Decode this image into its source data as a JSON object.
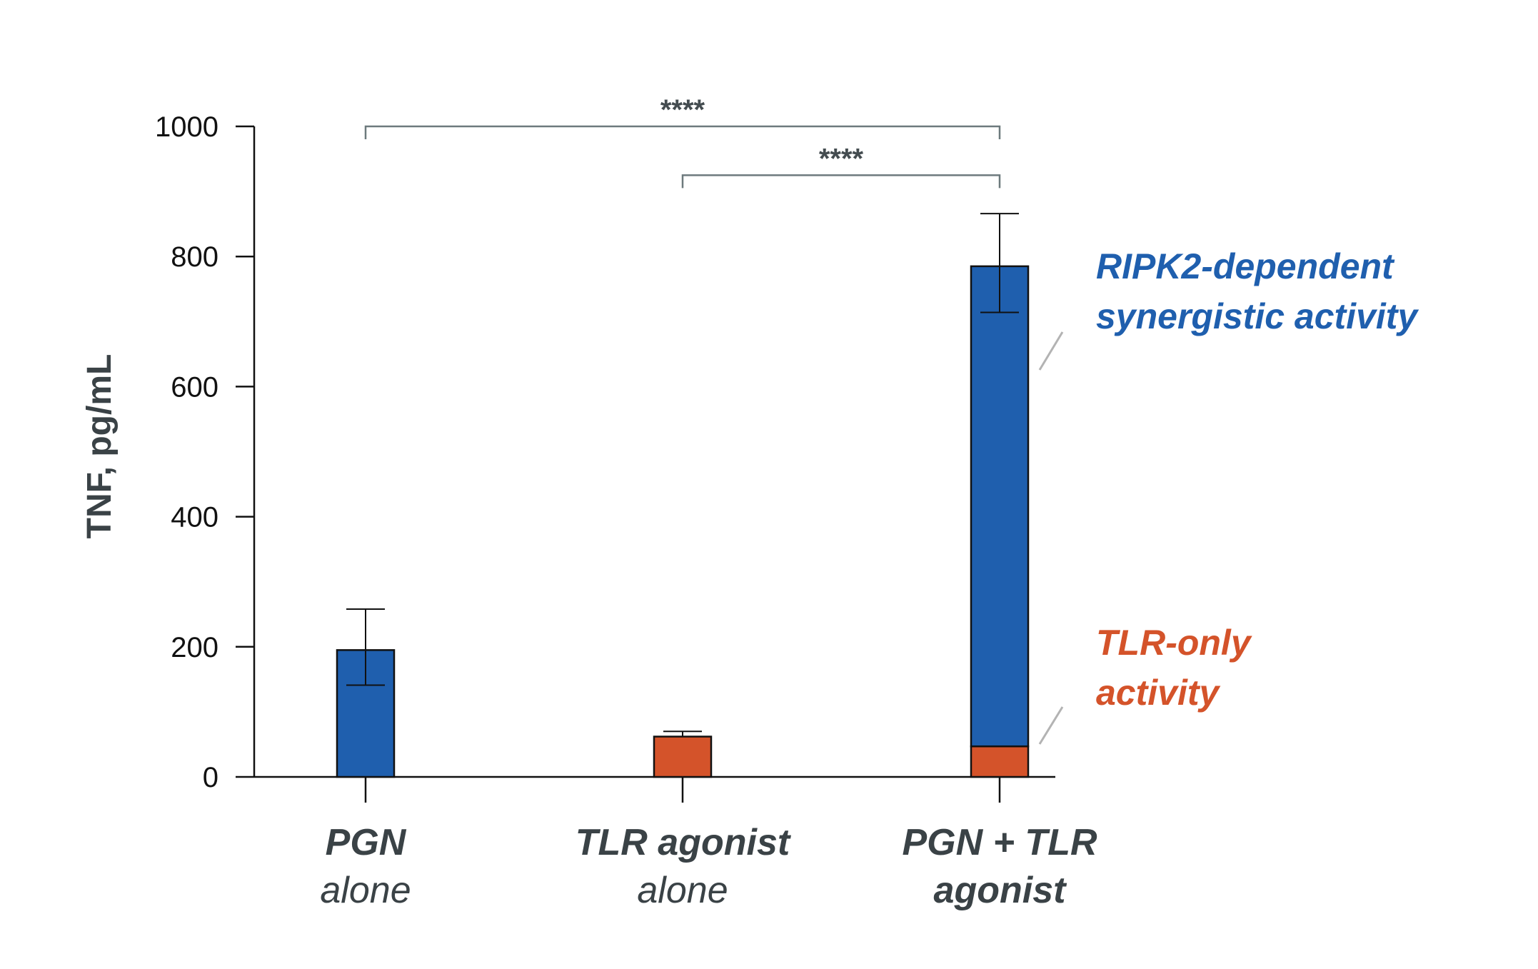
{
  "chart_data": {
    "type": "bar",
    "stacked": true,
    "title": "",
    "xlabel": "",
    "ylabel": "TNF, pg/mL",
    "ylim": [
      0,
      1000
    ],
    "yticks": [
      0,
      200,
      400,
      600,
      800,
      1000
    ],
    "categories": [
      {
        "main": "PGN",
        "sub": "alone",
        "sub_bold": false
      },
      {
        "main": "TLR agonist",
        "sub": "alone",
        "sub_bold": false
      },
      {
        "main": "PGN + TLR",
        "sub": "agonist",
        "sub_bold": true
      }
    ],
    "series": [
      {
        "name": "TLR-only activity",
        "color": "#d4532a",
        "values": [
          0,
          62,
          47
        ]
      },
      {
        "name": "RIPK2-dependent synergistic activity",
        "color": "#1f5fae",
        "values": [
          195,
          0,
          738
        ]
      }
    ],
    "error_bars": [
      {
        "category": 0,
        "low": 141,
        "high": 258
      },
      {
        "category": 1,
        "low": 62,
        "high": 70
      },
      {
        "category": 2,
        "low": 714,
        "high": 866
      }
    ],
    "significance": [
      {
        "from": 0,
        "to": 2,
        "level": 1000,
        "label": "****"
      },
      {
        "from": 1,
        "to": 2,
        "level": 925,
        "label": "****"
      }
    ],
    "annotations": [
      {
        "lines": [
          "RIPK2-dependent",
          "synergistic activity"
        ],
        "color": "#1f5fae",
        "series": 1
      },
      {
        "lines": [
          "TLR-only",
          "activity"
        ],
        "color": "#d4532a",
        "series": 0
      }
    ],
    "grid": false
  }
}
